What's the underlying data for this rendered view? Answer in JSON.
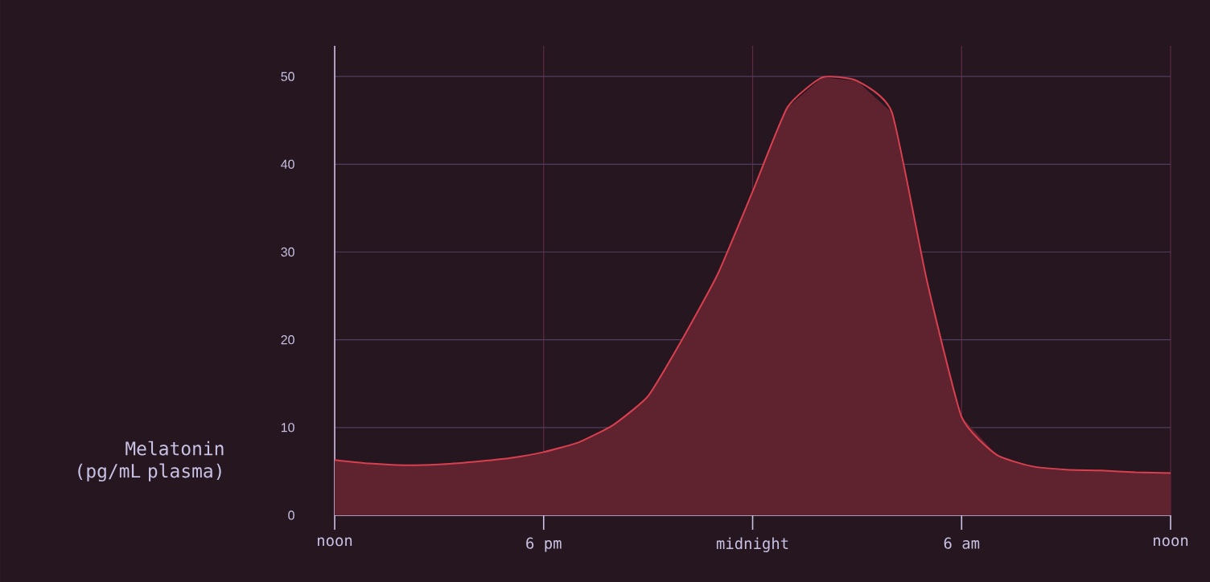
{
  "chart_data": {
    "type": "area",
    "ylabel": "Melatonin (pg/mL plasma)",
    "categories": [
      "noon",
      null,
      null,
      null,
      null,
      null,
      "6 pm",
      null,
      null,
      null,
      null,
      null,
      "midnight",
      null,
      null,
      null,
      null,
      null,
      "6 am",
      null,
      null,
      null,
      null,
      null,
      "noon"
    ],
    "series": [
      {
        "color": "#d9404f",
        "values": [
          6.3,
          5.9,
          5.7,
          5.8,
          6.1,
          6.5,
          7.2,
          8.3,
          10.3,
          13.6,
          20.2,
          27.5,
          36.9,
          46.5,
          49.9,
          49.5,
          45.9,
          26.8,
          11.2,
          6.9,
          5.6,
          5.2,
          5.1,
          4.9,
          4.8
        ]
      }
    ],
    "ylim": [
      0,
      53.5
    ],
    "yticks": [
      0,
      10,
      20,
      30,
      40,
      50
    ],
    "grid": true
  }
}
